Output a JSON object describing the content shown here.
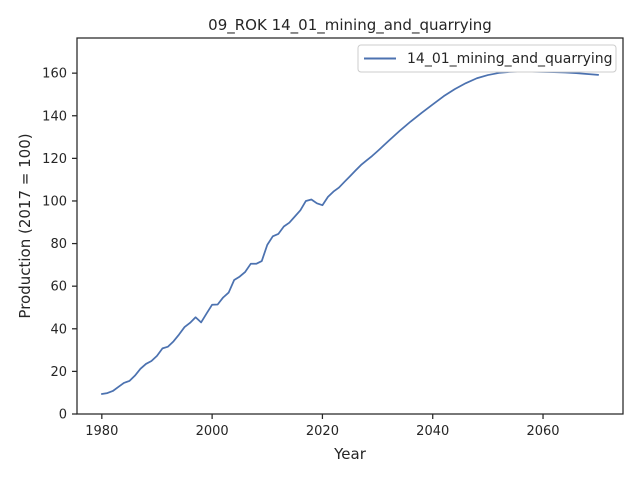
{
  "chart_data": {
    "type": "line",
    "title": "09_ROK 14_01_mining_and_quarrying",
    "xlabel": "Year",
    "ylabel": "Production (2017 = 100)",
    "xlim": [
      1975.5,
      2074.5
    ],
    "ylim": [
      0,
      176.5
    ],
    "x_ticks": [
      1980,
      2000,
      2020,
      2040,
      2060
    ],
    "y_ticks": [
      0,
      20,
      40,
      60,
      80,
      100,
      120,
      140,
      160
    ],
    "x_tick_labels": [
      "1980",
      "2000",
      "2020",
      "2040",
      "2060"
    ],
    "y_tick_labels": [
      "0",
      "20",
      "40",
      "60",
      "80",
      "100",
      "120",
      "140",
      "160"
    ],
    "legend_position": "top-right",
    "grid": false,
    "series": [
      {
        "name": "14_01_mining_and_quarrying",
        "color": "#4c72b0",
        "x": [
          1980,
          1981,
          1982,
          1983,
          1984,
          1985,
          1986,
          1987,
          1988,
          1989,
          1990,
          1991,
          1992,
          1993,
          1994,
          1995,
          1996,
          1997,
          1998,
          1999,
          2000,
          2001,
          2002,
          2003,
          2004,
          2005,
          2006,
          2007,
          2008,
          2009,
          2010,
          2011,
          2012,
          2013,
          2014,
          2015,
          2016,
          2017,
          2018,
          2019,
          2020,
          2021,
          2022,
          2023,
          2024,
          2025,
          2026,
          2027,
          2028,
          2029,
          2030,
          2032,
          2034,
          2036,
          2038,
          2040,
          2042,
          2044,
          2046,
          2048,
          2050,
          2052,
          2054,
          2056,
          2058,
          2060,
          2062,
          2064,
          2066,
          2068,
          2070
        ],
        "values": [
          9.4,
          9.8,
          10.8,
          12.7,
          14.6,
          15.5,
          18,
          21.2,
          23.5,
          24.9,
          27.3,
          30.8,
          31.6,
          34.1,
          37.3,
          40.8,
          42.8,
          45.4,
          43,
          47.2,
          51.3,
          51.4,
          54.7,
          57,
          62.9,
          64.5,
          66.7,
          70.5,
          70.5,
          71.8,
          79.4,
          83.4,
          84.5,
          88,
          89.8,
          92.7,
          95.6,
          100,
          100.7,
          98.9,
          98,
          101.9,
          104.4,
          106.3,
          109,
          111.6,
          114.3,
          116.9,
          119,
          121.1,
          123.4,
          128.2,
          132.9,
          137.3,
          141.4,
          145.3,
          149.2,
          152.5,
          155.3,
          157.6,
          159.1,
          160.1,
          160.6,
          160.8,
          160.7,
          160.6,
          160.5,
          160.3,
          160,
          159.6,
          159.2
        ]
      }
    ]
  }
}
